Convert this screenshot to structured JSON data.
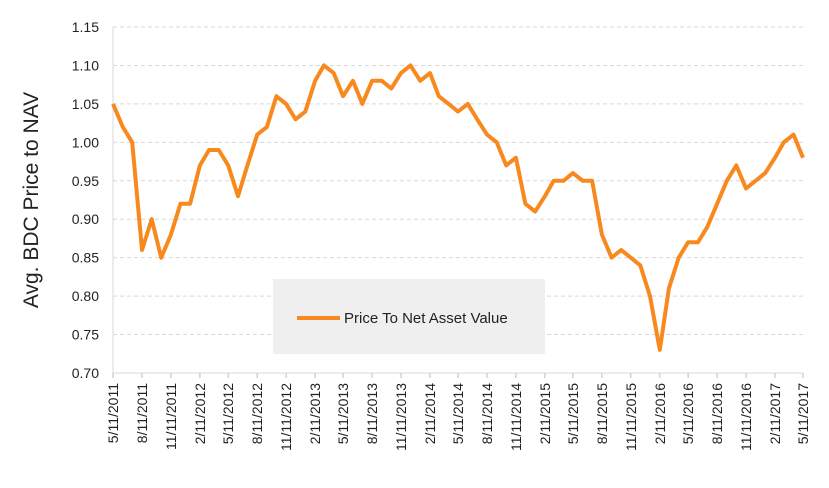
{
  "chart_data": {
    "type": "line",
    "y_label": "Avg. BDC Price to NAV",
    "x": [
      "5/11/2011",
      "6/11/2011",
      "7/11/2011",
      "8/11/2011",
      "9/11/2011",
      "10/11/2011",
      "11/11/2011",
      "12/11/2011",
      "1/11/2012",
      "2/11/2012",
      "3/11/2012",
      "4/11/2012",
      "5/11/2012",
      "6/11/2012",
      "7/11/2012",
      "8/11/2012",
      "9/11/2012",
      "10/11/2012",
      "11/11/2012",
      "12/11/2012",
      "1/11/2013",
      "2/11/2013",
      "3/11/2013",
      "4/11/2013",
      "5/11/2013",
      "6/11/2013",
      "7/11/2013",
      "8/11/2013",
      "9/11/2013",
      "10/11/2013",
      "11/11/2013",
      "12/11/2013",
      "1/11/2014",
      "2/11/2014",
      "3/11/2014",
      "4/11/2014",
      "5/11/2014",
      "6/11/2014",
      "7/11/2014",
      "8/11/2014",
      "9/11/2014",
      "10/11/2014",
      "11/11/2014",
      "12/11/2014",
      "1/11/2015",
      "2/11/2015",
      "3/11/2015",
      "4/11/2015",
      "5/11/2015",
      "6/11/2015",
      "7/11/2015",
      "8/11/2015",
      "9/11/2015",
      "10/11/2015",
      "11/11/2015",
      "12/11/2015",
      "1/11/2016",
      "2/11/2016",
      "3/11/2016",
      "4/11/2016",
      "5/11/2016",
      "6/11/2016",
      "7/11/2016",
      "8/11/2016",
      "9/11/2016",
      "10/11/2016",
      "11/11/2016",
      "12/11/2016",
      "1/11/2017",
      "2/11/2017",
      "3/11/2017",
      "4/11/2017",
      "5/11/2017"
    ],
    "series": [
      {
        "name": "Price To Net Asset Value",
        "color": "#f7891f",
        "values": [
          1.05,
          1.02,
          1.0,
          0.86,
          0.9,
          0.85,
          0.88,
          0.92,
          0.92,
          0.97,
          0.99,
          0.99,
          0.97,
          0.93,
          0.97,
          1.01,
          1.02,
          1.06,
          1.05,
          1.03,
          1.04,
          1.08,
          1.1,
          1.09,
          1.06,
          1.08,
          1.05,
          1.08,
          1.08,
          1.07,
          1.09,
          1.1,
          1.08,
          1.09,
          1.06,
          1.05,
          1.04,
          1.05,
          1.03,
          1.01,
          1.0,
          0.97,
          0.98,
          0.92,
          0.91,
          0.93,
          0.95,
          0.95,
          0.96,
          0.95,
          0.95,
          0.88,
          0.85,
          0.86,
          0.85,
          0.84,
          0.8,
          0.73,
          0.81,
          0.85,
          0.87,
          0.87,
          0.89,
          0.92,
          0.95,
          0.97,
          0.94,
          0.95,
          0.96,
          0.98,
          1.0,
          1.01,
          0.98
        ]
      }
    ],
    "xlim": [
      "5/11/2011",
      "5/11/2017"
    ],
    "xticks": [
      "5/11/2011",
      "8/11/2011",
      "11/11/2011",
      "2/11/2012",
      "5/11/2012",
      "8/11/2012",
      "11/11/2012",
      "2/11/2013",
      "5/11/2013",
      "8/11/2013",
      "11/11/2013",
      "2/11/2014",
      "5/11/2014",
      "8/11/2014",
      "11/11/2014",
      "2/11/2015",
      "5/11/2015",
      "8/11/2015",
      "11/11/2015",
      "2/11/2016",
      "5/11/2016",
      "8/11/2016",
      "11/11/2016",
      "2/11/2017",
      "5/11/2017"
    ],
    "ylim": [
      0.7,
      1.15
    ],
    "yticks": [
      {
        "value": 0.7,
        "label": "0.70"
      },
      {
        "value": 0.75,
        "label": "0.75"
      },
      {
        "value": 0.8,
        "label": "0.80"
      },
      {
        "value": 0.85,
        "label": "0.85"
      },
      {
        "value": 0.9,
        "label": "0.90"
      },
      {
        "value": 0.95,
        "label": "0.95"
      },
      {
        "value": 1.0,
        "label": "1.00"
      },
      {
        "value": 1.05,
        "label": "1.05"
      },
      {
        "value": 1.1,
        "label": "1.10"
      },
      {
        "value": 1.15,
        "label": "1.15"
      }
    ],
    "grid": true
  }
}
